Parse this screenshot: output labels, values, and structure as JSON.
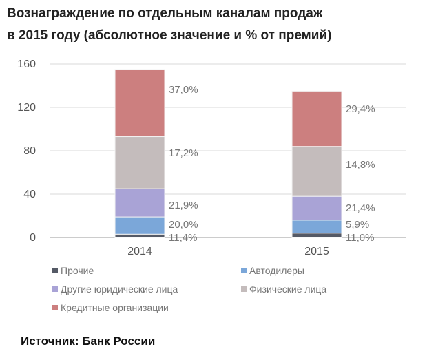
{
  "title_lines": [
    "Вознаграждение по отдельным каналам продаж",
    "в 2015 году (абсолютное значение и % от премий)"
  ],
  "source": "Источник: Банк России",
  "colors": {
    "Прочие": "#555a66",
    "Автодилеры": "#7ba7d9",
    "Другие юридические лица": "#a9a3d6",
    "Физические лица": "#c4bcbc",
    "Кредитные организации": "#cc7f7f"
  },
  "chart_data": {
    "type": "bar",
    "stacked": true,
    "categories": [
      "2014",
      "2015"
    ],
    "ylim": [
      0,
      160
    ],
    "yticks": [
      0,
      40,
      80,
      120,
      160
    ],
    "grid": true,
    "legend_position": "bottom",
    "series": [
      {
        "name": "Прочие",
        "values": [
          3,
          4
        ],
        "labels": [
          "11,4%",
          "11,0%"
        ]
      },
      {
        "name": "Автодилеры",
        "values": [
          16,
          12
        ],
        "labels": [
          "20,0%",
          "5,9%"
        ]
      },
      {
        "name": "Другие юридические лица",
        "values": [
          26,
          22
        ],
        "labels": [
          "21,9%",
          "21,4%"
        ]
      },
      {
        "name": "Физические лица",
        "values": [
          48,
          46
        ],
        "labels": [
          "17,2%",
          "14,8%"
        ]
      },
      {
        "name": "Кредитные организации",
        "values": [
          62,
          51
        ],
        "labels": [
          "37,0%",
          "29,4%"
        ]
      }
    ]
  }
}
